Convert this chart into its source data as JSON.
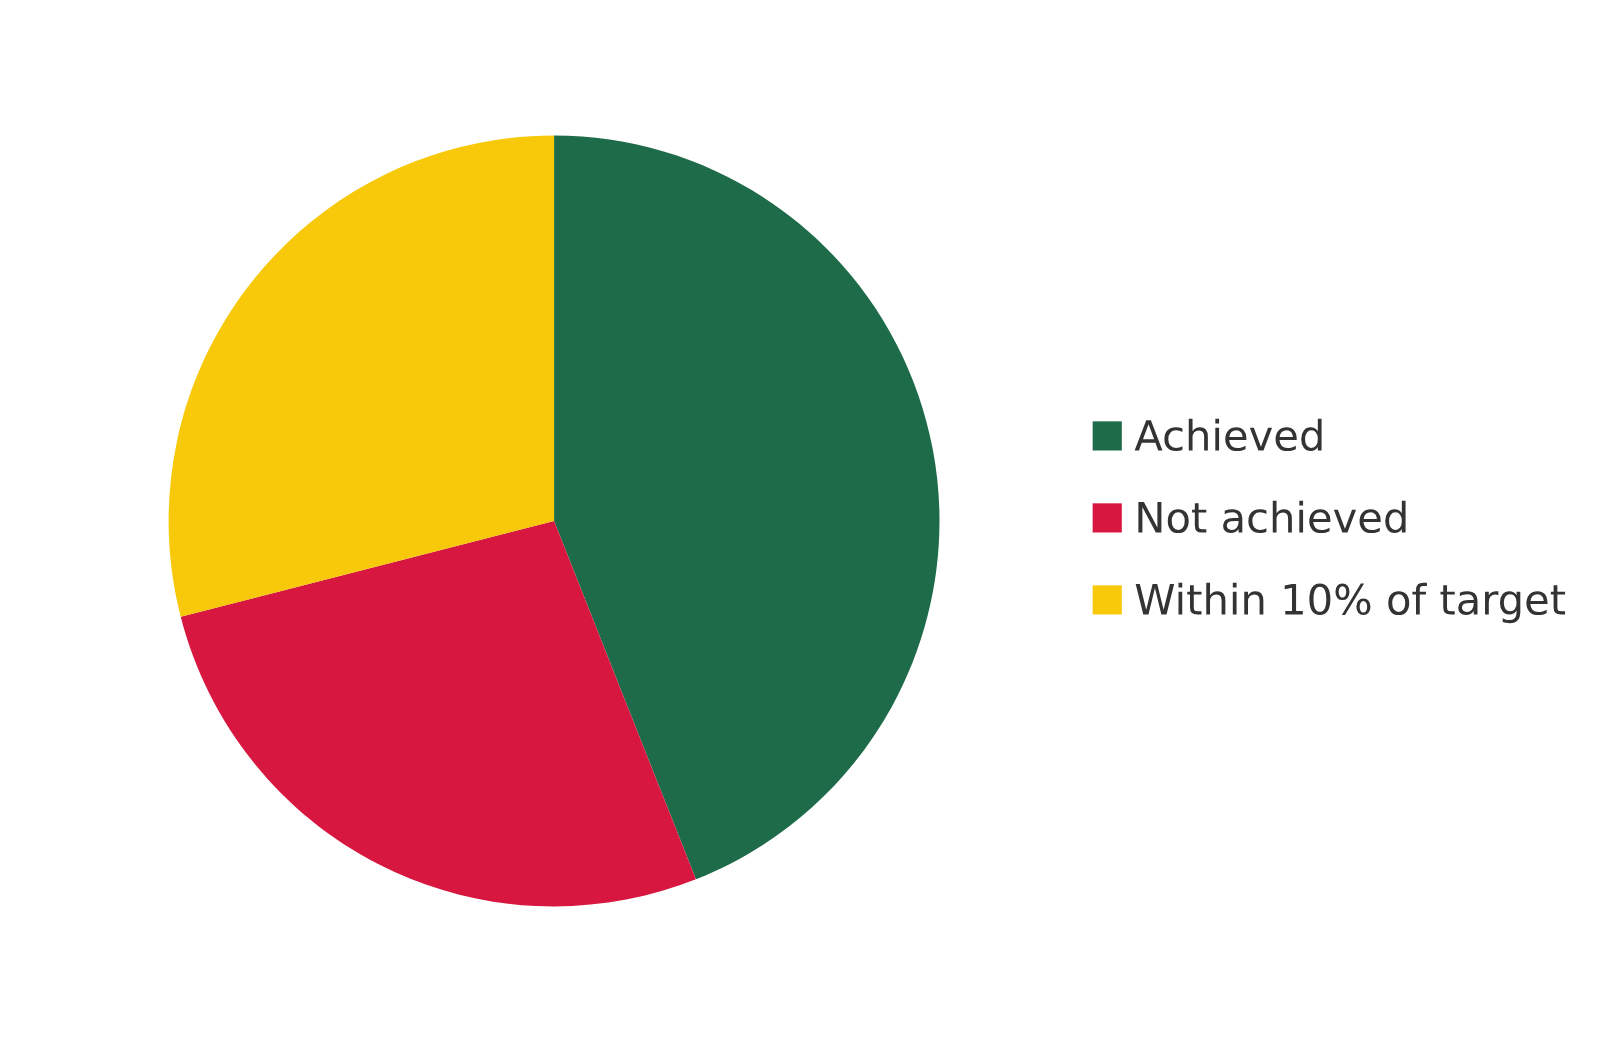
{
  "chart_data": {
    "type": "pie",
    "categories": [
      "Achieved",
      "Not achieved",
      "Within 10% of target"
    ],
    "values": [
      44,
      27,
      29
    ],
    "colors": [
      "#1e6b4a",
      "#d7173f",
      "#f7c90a"
    ],
    "legend": "right"
  }
}
